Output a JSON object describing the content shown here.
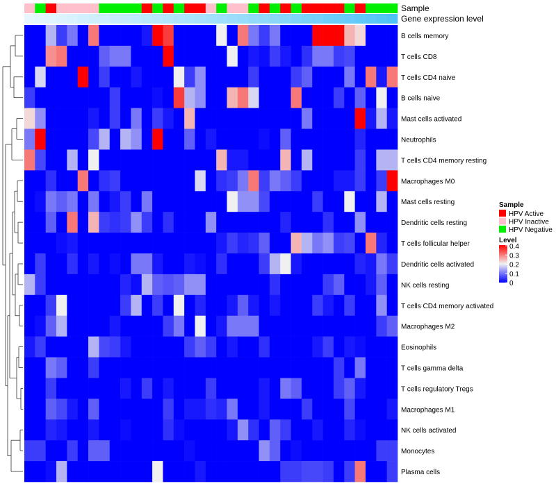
{
  "chart_data": {
    "type": "heatmap",
    "title": "",
    "annotation_tracks": [
      "Sample",
      "Gene expression level"
    ],
    "rows": [
      "B cells memory",
      "T cells CD8",
      "T cells CD4 naive",
      "B cells naive",
      "Mast cells activated",
      "Neutrophils",
      "T cells CD4 memory resting",
      "Macrophages M0",
      "Mast cells resting",
      "Dendritic cells resting",
      "T cells follicular helper",
      "Dendritic cells activated",
      "NK cells resting",
      "T cells CD4 memory activated",
      "Macrophages M2",
      "Eosinophils",
      "T cells gamma delta",
      "T cells regulatory  Tregs",
      "Macrophages M1",
      "NK cells activated",
      "Monocytes",
      "Plasma cells"
    ],
    "sample_groups": [
      "I",
      "N",
      "A",
      "I",
      "I",
      "I",
      "I",
      "N",
      "N",
      "N",
      "N",
      "A",
      "N",
      "A",
      "N",
      "A",
      "A",
      "I",
      "N",
      "I",
      "I",
      "N",
      "A",
      "N",
      "A",
      "N",
      "A",
      "A",
      "A",
      "A",
      "N",
      "A",
      "N",
      "N",
      "N"
    ],
    "expression_level": [
      0.05,
      0.08,
      0.1,
      0.12,
      0.15,
      0.18,
      0.2,
      0.22,
      0.25,
      0.28,
      0.3,
      0.32,
      0.35,
      0.38,
      0.4,
      0.42,
      0.45,
      0.48,
      0.5,
      0.52,
      0.55,
      0.58,
      0.6,
      0.63,
      0.66,
      0.7,
      0.73,
      0.76,
      0.8,
      0.83,
      0.86,
      0.9,
      0.93,
      0.96,
      1.0
    ],
    "values": [
      [
        0,
        0,
        0.15,
        0.05,
        0.1,
        0,
        0.3,
        0,
        0,
        0,
        0,
        0.02,
        0.4,
        0.35,
        0,
        0,
        0,
        0,
        0.2,
        0,
        0.3,
        0.1,
        0.05,
        0.1,
        0,
        0,
        0,
        0.4,
        0.4,
        0.4,
        0.25,
        0.22,
        0,
        0,
        0
      ],
      [
        0,
        0,
        0.28,
        0.3,
        0,
        0,
        0,
        0.08,
        0.1,
        0.1,
        0,
        0,
        0,
        0.4,
        0,
        0,
        0,
        0,
        0,
        0.2,
        0,
        0.02,
        0.01,
        0.05,
        0.02,
        0,
        0.04,
        0.1,
        0.1,
        0.05,
        0.06,
        0,
        0,
        0,
        0
      ],
      [
        0,
        0.18,
        0,
        0,
        0,
        0.4,
        0,
        0.05,
        0,
        0,
        0.02,
        0,
        0,
        0,
        0.2,
        0.05,
        0.12,
        0,
        0,
        0,
        0,
        0.05,
        0,
        0,
        0,
        0.05,
        0.08,
        0,
        0,
        0,
        0.1,
        0,
        0.3,
        0.02,
        0.3
      ],
      [
        0.05,
        0,
        0,
        0,
        0,
        0,
        0,
        0,
        0.05,
        0,
        0,
        0,
        0.01,
        0,
        0.35,
        0.15,
        0.12,
        0,
        0,
        0.25,
        0.3,
        0.18,
        0,
        0,
        0,
        0.3,
        0,
        0,
        0,
        0.05,
        0,
        0.08,
        0,
        0.2,
        0
      ],
      [
        0.22,
        0.12,
        0,
        0,
        0,
        0,
        0.02,
        0,
        0.05,
        0,
        0.1,
        0,
        0.05,
        0.02,
        0,
        0.25,
        0,
        0,
        0,
        0,
        0,
        0,
        0,
        0,
        0,
        0,
        0.1,
        0,
        0,
        0,
        0,
        0.4,
        0.02,
        0.15,
        0.02
      ],
      [
        0.1,
        0.4,
        0,
        0,
        0,
        0,
        0.06,
        0.15,
        0,
        0.15,
        0.12,
        0,
        0.4,
        0,
        0,
        0.08,
        0,
        0.02,
        0,
        0,
        0,
        0,
        0.01,
        0,
        0.08,
        0,
        0,
        0,
        0,
        0,
        0,
        0.03,
        0,
        0,
        0
      ],
      [
        0.3,
        0.06,
        0,
        0,
        0.15,
        0,
        0.2,
        0,
        0,
        0,
        0,
        0,
        0,
        0,
        0,
        0,
        0,
        0,
        0.25,
        0.02,
        0.02,
        0,
        0,
        0,
        0.25,
        0,
        0.15,
        0,
        0,
        0,
        0,
        0.05,
        0,
        0.15,
        0.15
      ],
      [
        0,
        0,
        0.04,
        0,
        0,
        0.3,
        0,
        0.04,
        0.05,
        0,
        0,
        0,
        0,
        0,
        0,
        0,
        0.18,
        0,
        0.04,
        0.05,
        0.1,
        0.3,
        0.05,
        0.1,
        0.08,
        0.05,
        0,
        0,
        0,
        0.02,
        0.02,
        0.05,
        0,
        0.05,
        0.4
      ],
      [
        0,
        0.01,
        0.1,
        0.08,
        0.1,
        0,
        0.1,
        0,
        0.02,
        0.05,
        0,
        0.1,
        0,
        0,
        0,
        0,
        0,
        0,
        0,
        0.2,
        0.12,
        0.12,
        0.06,
        0,
        0,
        0,
        0,
        0.05,
        0,
        0,
        0.2,
        0,
        0,
        0.15,
        0
      ],
      [
        0,
        0,
        0.08,
        0,
        0.3,
        0,
        0.25,
        0.05,
        0.04,
        0.05,
        0.12,
        0.05,
        0,
        0.04,
        0,
        0,
        0,
        0.12,
        0,
        0,
        0,
        0,
        0,
        0,
        0.03,
        0,
        0,
        0,
        0.04,
        0,
        0,
        0.12,
        0,
        0,
        0
      ],
      [
        0,
        0,
        0,
        0.01,
        0.02,
        0,
        0,
        0,
        0,
        0,
        0,
        0,
        0,
        0,
        0,
        0,
        0,
        0,
        0.02,
        0.05,
        0.03,
        0.04,
        0.08,
        0,
        0,
        0.25,
        0.15,
        0.1,
        0.12,
        0.05,
        0.06,
        0,
        0.3,
        0.03,
        0
      ],
      [
        0,
        0.05,
        0,
        0,
        0.04,
        0,
        0.02,
        0,
        0.01,
        0,
        0.1,
        0.1,
        0.02,
        0,
        0,
        0.02,
        0.01,
        0,
        0.04,
        0,
        0,
        0,
        0.05,
        0.15,
        0.2,
        0.02,
        0,
        0,
        0,
        0,
        0,
        0.03,
        0.02,
        0.1,
        0.05
      ],
      [
        0.15,
        0.05,
        0,
        0,
        0,
        0,
        0,
        0,
        0,
        0.03,
        0.01,
        0.15,
        0.08,
        0.07,
        0.08,
        0.12,
        0.12,
        0,
        0,
        0,
        0,
        0,
        0,
        0.04,
        0,
        0,
        0,
        0,
        0.05,
        0.08,
        0,
        0,
        0.02,
        0.08,
        0
      ],
      [
        0,
        0,
        0.05,
        0.2,
        0,
        0,
        0,
        0,
        0,
        0.05,
        0.15,
        0,
        0.05,
        0,
        0.2,
        0,
        0.03,
        0,
        0,
        0.02,
        0.08,
        0.02,
        0,
        0.02,
        0,
        0,
        0,
        0.05,
        0.02,
        0,
        0.05,
        0,
        0,
        0.12,
        0
      ],
      [
        0,
        0.01,
        0.08,
        0.15,
        0,
        0,
        0,
        0,
        0.02,
        0,
        0,
        0,
        0,
        0.05,
        0.1,
        0,
        0.2,
        0,
        0.02,
        0.1,
        0.1,
        0.1,
        0,
        0,
        0,
        0,
        0,
        0,
        0,
        0,
        0,
        0,
        0,
        0.05,
        0.08
      ],
      [
        0.02,
        0.05,
        0,
        0,
        0,
        0,
        0.15,
        0.06,
        0.05,
        0.02,
        0,
        0,
        0,
        0,
        0,
        0.05,
        0.08,
        0.05,
        0,
        0.02,
        0,
        0,
        0.04,
        0,
        0,
        0,
        0,
        0.02,
        0.05,
        0,
        0.02,
        0.01,
        0,
        0,
        0
      ],
      [
        0,
        0,
        0.1,
        0.08,
        0,
        0,
        0.05,
        0,
        0,
        0,
        0,
        0,
        0,
        0,
        0,
        0,
        0,
        0,
        0,
        0,
        0,
        0,
        0,
        0,
        0,
        0,
        0,
        0,
        0,
        0.05,
        0,
        0.1,
        0,
        0,
        0
      ],
      [
        0,
        0,
        0.05,
        0,
        0,
        0,
        0,
        0,
        0,
        0.02,
        0,
        0.05,
        0,
        0.02,
        0,
        0,
        0,
        0.05,
        0,
        0,
        0,
        0,
        0.02,
        0,
        0.1,
        0.08,
        0,
        0,
        0,
        0.05,
        0.08,
        0.02,
        0,
        0,
        0
      ],
      [
        0,
        0,
        0.08,
        0.06,
        0.02,
        0,
        0.08,
        0,
        0,
        0,
        0,
        0,
        0,
        0.05,
        0,
        0.02,
        0.02,
        0.04,
        0.03,
        0.1,
        0,
        0,
        0.02,
        0,
        0,
        0,
        0.05,
        0,
        0,
        0,
        0.06,
        0,
        0,
        0,
        0.02
      ],
      [
        0,
        0,
        0.03,
        0.02,
        0,
        0,
        0.02,
        0,
        0,
        0.01,
        0,
        0,
        0,
        0.04,
        0.01,
        0,
        0,
        0,
        0,
        0.02,
        0.12,
        0.04,
        0,
        0.08,
        0.05,
        0,
        0,
        0.02,
        0,
        0,
        0.03,
        0.01,
        0,
        0,
        0
      ],
      [
        0.05,
        0.05,
        0,
        0,
        0.05,
        0,
        0.08,
        0.08,
        0,
        0,
        0,
        0,
        0,
        0,
        0,
        0.01,
        0,
        0,
        0,
        0,
        0,
        0,
        0.12,
        0.08,
        0,
        0.01,
        0,
        0,
        0,
        0,
        0,
        0,
        0,
        0.05,
        0.05
      ],
      [
        0,
        0,
        0.01,
        0.15,
        0,
        0,
        0,
        0,
        0,
        0,
        0,
        0,
        0.2,
        0,
        0,
        0,
        0.02,
        0,
        0,
        0,
        0,
        0,
        0,
        0,
        0.05,
        0.05,
        0.06,
        0.06,
        0.05,
        0,
        0.05,
        0.3,
        0,
        0,
        0.05
      ]
    ],
    "color_scale": {
      "min": 0,
      "max": 0.4,
      "low": "#0000FF",
      "mid": "#F0F0F0",
      "high": "#FF0000"
    },
    "legend_placement": "right",
    "legends": {
      "sample": {
        "title": "Sample",
        "items": [
          {
            "code": "A",
            "label": "HPV Active",
            "color": "#FF0000"
          },
          {
            "code": "I",
            "label": "HPV Inactive",
            "color": "#FFC0CB"
          },
          {
            "code": "N",
            "label": "HPV Negative",
            "color": "#00EE00"
          }
        ]
      },
      "level": {
        "title": "Level",
        "ticks": [
          "0.4",
          "0.3",
          "0.2",
          "0.1",
          "0"
        ]
      }
    },
    "expression_track_colors": {
      "low": "#F0FAFF",
      "high": "#4FC3F7"
    },
    "dendrogram": "rows"
  }
}
